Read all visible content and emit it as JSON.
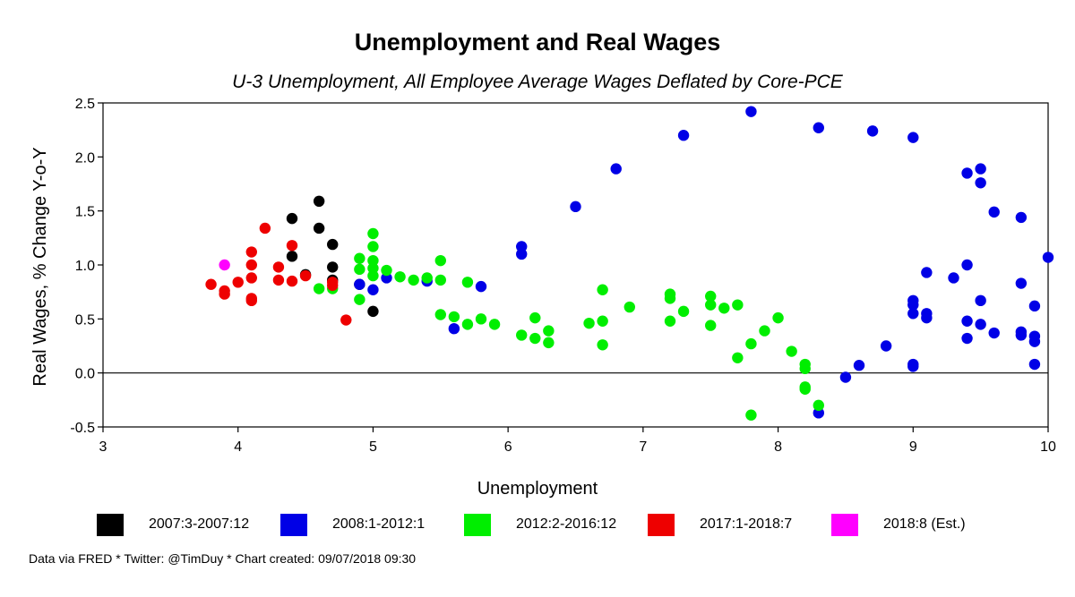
{
  "chart_data": {
    "type": "scatter",
    "title": "Unemployment and Real Wages",
    "subtitle": "U-3 Unemployment, All Employee Average Wages Deflated by Core-PCE",
    "xlabel": "Unemployment",
    "ylabel": "Real Wages, % Change Y-o-Y",
    "xlim": [
      3,
      10
    ],
    "ylim": [
      -0.5,
      2.5
    ],
    "x_ticks": [
      "3",
      "4",
      "5",
      "6",
      "7",
      "8",
      "9",
      "10"
    ],
    "y_ticks": [
      "2.5",
      "2.0",
      "1.5",
      "1.0",
      "0.5",
      "0.0",
      "-0.5"
    ],
    "zero_line": true,
    "grid": false,
    "legend_position": "bottom",
    "series": [
      {
        "name": "2007:3-2007:12",
        "color": "#000000",
        "points": [
          [
            4.4,
            1.43
          ],
          [
            4.4,
            1.08
          ],
          [
            4.5,
            0.91
          ],
          [
            4.6,
            1.59
          ],
          [
            4.6,
            1.34
          ],
          [
            4.7,
            1.19
          ],
          [
            4.7,
            0.98
          ],
          [
            4.7,
            0.86
          ],
          [
            4.9,
            0.82
          ],
          [
            5.0,
            0.57
          ]
        ]
      },
      {
        "name": "2008:1-2012:1",
        "color": "#0000e6",
        "points": [
          [
            4.9,
            0.82
          ],
          [
            5.0,
            0.77
          ],
          [
            5.1,
            0.88
          ],
          [
            5.4,
            0.85
          ],
          [
            5.6,
            0.41
          ],
          [
            5.8,
            0.8
          ],
          [
            6.1,
            1.17
          ],
          [
            6.1,
            1.1
          ],
          [
            6.5,
            1.54
          ],
          [
            6.8,
            1.89
          ],
          [
            7.3,
            2.2
          ],
          [
            7.8,
            2.42
          ],
          [
            8.3,
            2.27
          ],
          [
            8.3,
            -0.37
          ],
          [
            8.5,
            -0.04
          ],
          [
            8.6,
            0.07
          ],
          [
            8.7,
            2.24
          ],
          [
            8.8,
            0.25
          ],
          [
            9.0,
            2.18
          ],
          [
            9.0,
            0.67
          ],
          [
            9.0,
            0.63
          ],
          [
            9.0,
            0.55
          ],
          [
            9.0,
            0.08
          ],
          [
            9.0,
            0.06
          ],
          [
            9.1,
            0.93
          ],
          [
            9.1,
            0.55
          ],
          [
            9.1,
            0.51
          ],
          [
            9.3,
            0.88
          ],
          [
            9.4,
            1.85
          ],
          [
            9.4,
            1.0
          ],
          [
            9.4,
            0.48
          ],
          [
            9.4,
            0.32
          ],
          [
            9.5,
            1.89
          ],
          [
            9.5,
            1.76
          ],
          [
            9.5,
            0.67
          ],
          [
            9.5,
            0.45
          ],
          [
            9.6,
            1.49
          ],
          [
            9.6,
            0.37
          ],
          [
            9.8,
            1.44
          ],
          [
            9.8,
            0.83
          ],
          [
            9.8,
            0.38
          ],
          [
            9.8,
            0.35
          ],
          [
            9.9,
            0.62
          ],
          [
            9.9,
            0.34
          ],
          [
            9.9,
            0.29
          ],
          [
            9.9,
            0.08
          ],
          [
            10.0,
            1.07
          ]
        ]
      },
      {
        "name": "2012:2-2016:12",
        "color": "#00ee00",
        "points": [
          [
            4.6,
            0.78
          ],
          [
            4.7,
            0.78
          ],
          [
            4.9,
            1.06
          ],
          [
            4.9,
            0.96
          ],
          [
            4.9,
            0.68
          ],
          [
            5.0,
            1.29
          ],
          [
            5.0,
            1.17
          ],
          [
            5.0,
            1.04
          ],
          [
            5.0,
            0.97
          ],
          [
            5.0,
            0.9
          ],
          [
            5.1,
            0.95
          ],
          [
            5.2,
            0.89
          ],
          [
            5.3,
            0.86
          ],
          [
            5.4,
            0.88
          ],
          [
            5.5,
            1.04
          ],
          [
            5.5,
            0.86
          ],
          [
            5.5,
            0.54
          ],
          [
            5.6,
            0.52
          ],
          [
            5.7,
            0.84
          ],
          [
            5.7,
            0.45
          ],
          [
            5.8,
            0.5
          ],
          [
            5.9,
            0.45
          ],
          [
            6.1,
            0.35
          ],
          [
            6.2,
            0.51
          ],
          [
            6.2,
            0.32
          ],
          [
            6.3,
            0.39
          ],
          [
            6.3,
            0.28
          ],
          [
            6.6,
            0.46
          ],
          [
            6.7,
            0.77
          ],
          [
            6.7,
            0.48
          ],
          [
            6.7,
            0.26
          ],
          [
            6.9,
            0.61
          ],
          [
            7.2,
            0.73
          ],
          [
            7.2,
            0.69
          ],
          [
            7.2,
            0.48
          ],
          [
            7.3,
            0.57
          ],
          [
            7.5,
            0.71
          ],
          [
            7.5,
            0.63
          ],
          [
            7.5,
            0.44
          ],
          [
            7.6,
            0.6
          ],
          [
            7.7,
            0.63
          ],
          [
            7.7,
            0.14
          ],
          [
            7.8,
            0.27
          ],
          [
            7.8,
            -0.39
          ],
          [
            7.9,
            0.39
          ],
          [
            8.0,
            0.51
          ],
          [
            8.1,
            0.2
          ],
          [
            8.2,
            0.08
          ],
          [
            8.2,
            0.04
          ],
          [
            8.2,
            -0.13
          ],
          [
            8.2,
            -0.15
          ],
          [
            8.3,
            -0.3
          ]
        ]
      },
      {
        "name": "2017:1-2018:7",
        "color": "#ee0000",
        "points": [
          [
            3.8,
            0.82
          ],
          [
            3.9,
            0.76
          ],
          [
            3.9,
            0.73
          ],
          [
            4.0,
            0.84
          ],
          [
            4.1,
            1.12
          ],
          [
            4.1,
            1.0
          ],
          [
            4.1,
            0.88
          ],
          [
            4.1,
            0.69
          ],
          [
            4.1,
            0.67
          ],
          [
            4.2,
            1.34
          ],
          [
            4.3,
            0.98
          ],
          [
            4.3,
            0.86
          ],
          [
            4.4,
            1.18
          ],
          [
            4.4,
            0.85
          ],
          [
            4.5,
            0.9
          ],
          [
            4.7,
            0.84
          ],
          [
            4.7,
            0.81
          ],
          [
            4.8,
            0.49
          ]
        ]
      },
      {
        "name": "2018:8 (Est.)",
        "color": "#ff00ff",
        "points": [
          [
            3.9,
            1.0
          ]
        ]
      }
    ]
  },
  "footer": {
    "credit": "Data via FRED * Twitter: @TimDuy * Chart created: 09/07/2018 09:30"
  }
}
